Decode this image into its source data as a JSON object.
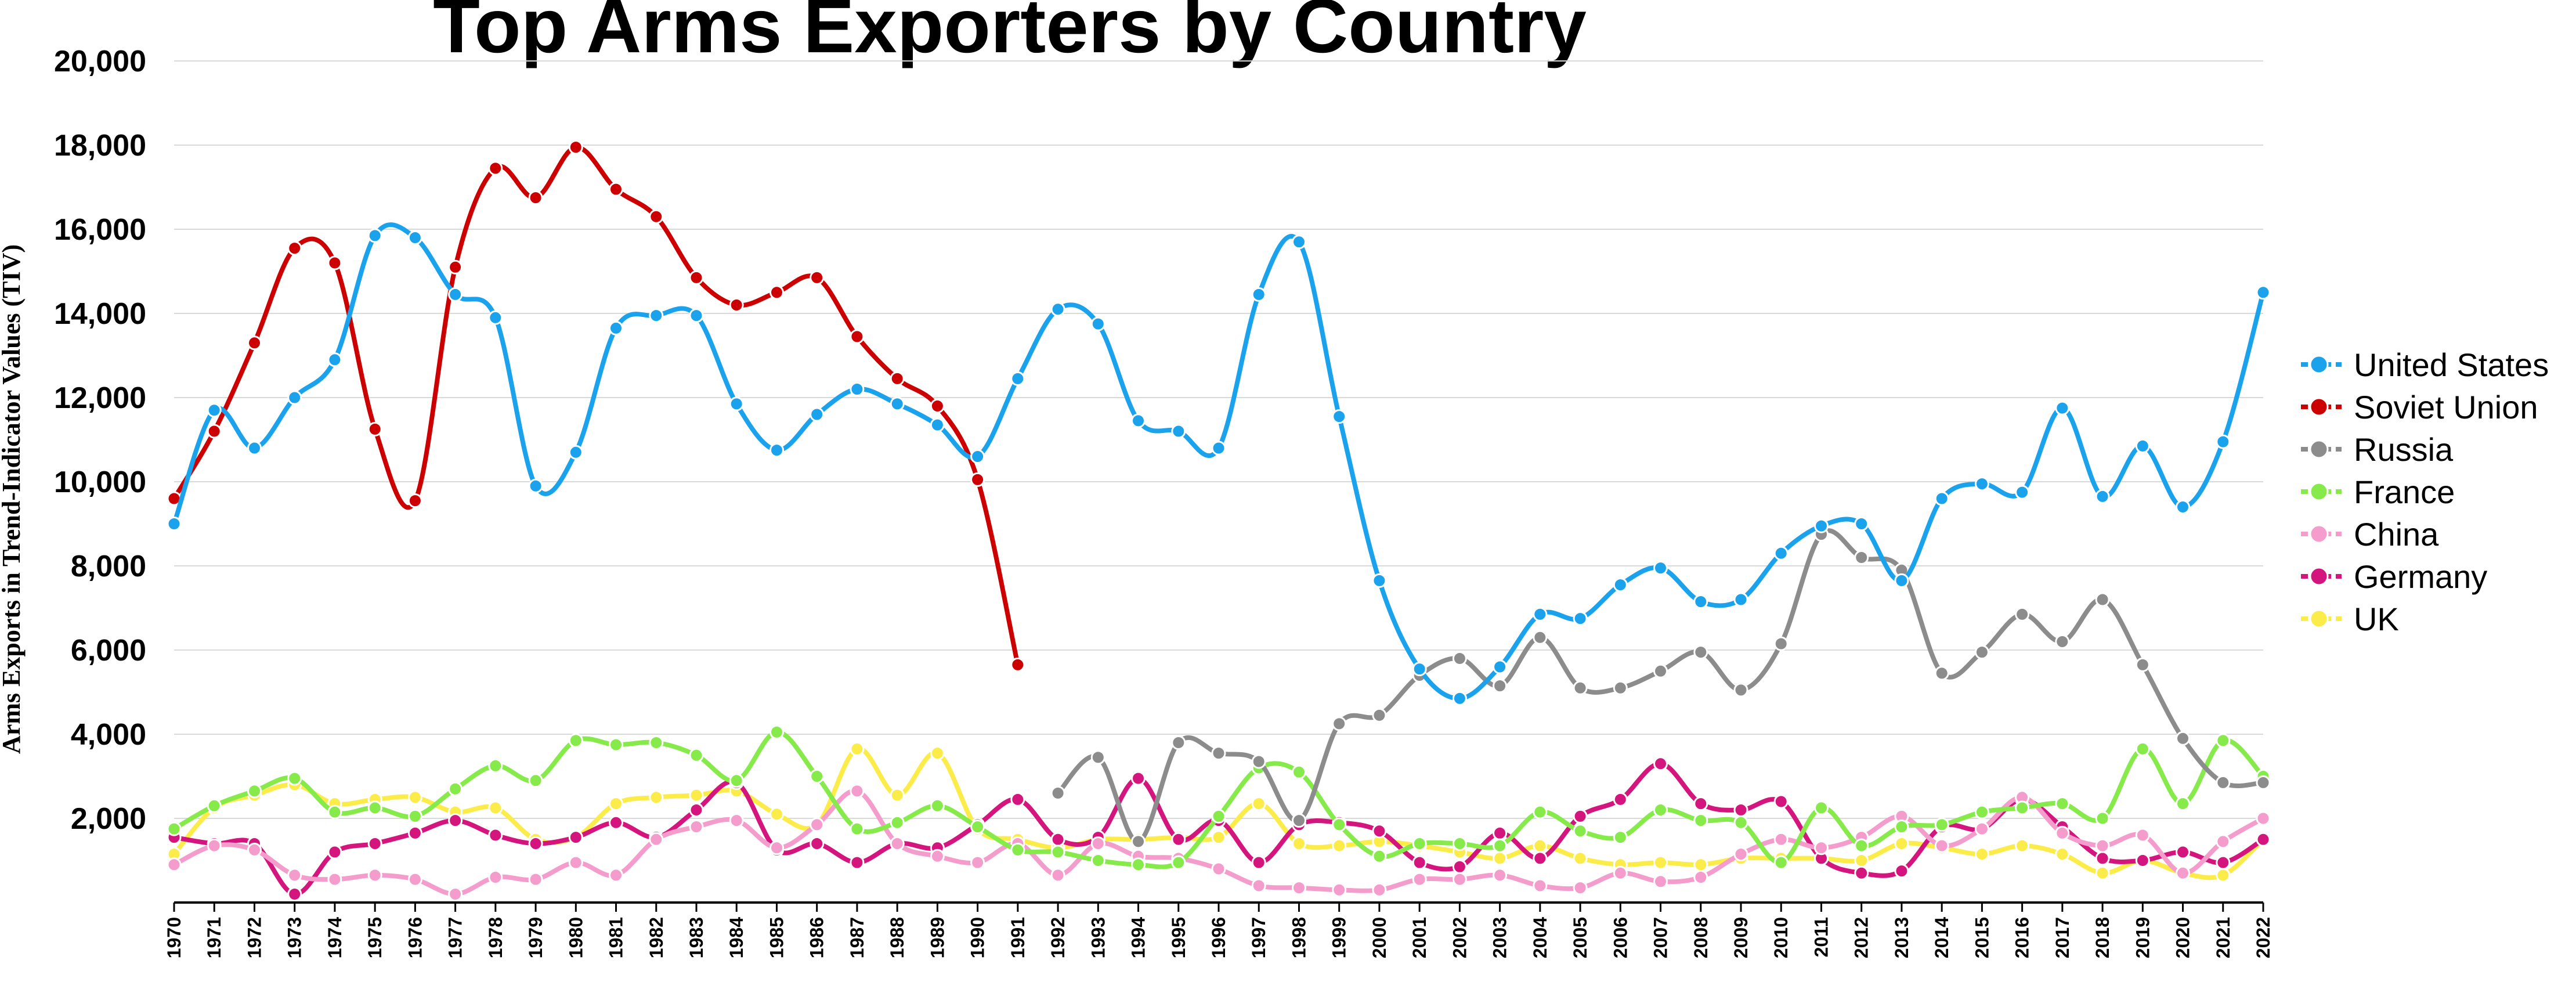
{
  "chart_data": {
    "type": "line",
    "title": "Top Arms Exporters by Country",
    "ylabel": "Arms Exports in Trend-Indicator Values (TIV)",
    "xlabel": "",
    "ylim": [
      0,
      20000
    ],
    "yticks": [
      2000,
      4000,
      6000,
      8000,
      10000,
      12000,
      14000,
      16000,
      18000,
      20000
    ],
    "ytick_labels": [
      "2,000",
      "4,000",
      "6,000",
      "8,000",
      "10,000",
      "12,000",
      "14,000",
      "16,000",
      "18,000",
      "20,000"
    ],
    "grid": true,
    "legend_position": "right",
    "x": [
      1970,
      1971,
      1972,
      1973,
      1974,
      1975,
      1976,
      1977,
      1978,
      1979,
      1980,
      1981,
      1982,
      1983,
      1984,
      1985,
      1986,
      1987,
      1988,
      1989,
      1990,
      1991,
      1992,
      1993,
      1994,
      1995,
      1996,
      1997,
      1998,
      1999,
      2000,
      2001,
      2002,
      2003,
      2004,
      2005,
      2006,
      2007,
      2008,
      2009,
      2010,
      2011,
      2012,
      2013,
      2014,
      2015,
      2016,
      2017,
      2018,
      2019,
      2020,
      2021,
      2022
    ],
    "x_labels": [
      "1970",
      "1971",
      "1972",
      "1973",
      "1974",
      "1975",
      "1976",
      "1977",
      "1978",
      "1979",
      "1980",
      "1981",
      "1982",
      "1983",
      "1984",
      "1985",
      "1986",
      "1987",
      "1988",
      "1989",
      "1990",
      "1991",
      "1992",
      "1993",
      "1994",
      "1995",
      "1996",
      "1997",
      "1998",
      "1999",
      "2000",
      "2001",
      "2002",
      "2003",
      "2004",
      "2005",
      "2006",
      "2007",
      "2008",
      "2009",
      "2010",
      "2011",
      "2012",
      "2013",
      "2014",
      "2015",
      "2016",
      "2017",
      "2018",
      "2019",
      "2020",
      "2021",
      "2022"
    ],
    "series": [
      {
        "name": "United States",
        "color": "#1aa3ec",
        "values": [
          9000,
          11700,
          10800,
          12000,
          12900,
          15850,
          15800,
          14450,
          13900,
          9900,
          10700,
          13650,
          13950,
          13950,
          11850,
          10750,
          11600,
          12200,
          11850,
          11350,
          10600,
          12450,
          14100,
          13750,
          11450,
          11200,
          10800,
          14450,
          15700,
          11550,
          7650,
          5550,
          4850,
          5600,
          6850,
          6750,
          7550,
          7950,
          7150,
          7200,
          8300,
          8950,
          9000,
          7650,
          9600,
          9950,
          9750,
          11750,
          9650,
          10850,
          9400,
          10950,
          14500
        ]
      },
      {
        "name": "Soviet Union",
        "color": "#cc0000",
        "values": [
          9600,
          11200,
          13300,
          15550,
          15200,
          11250,
          9550,
          15100,
          17450,
          16750,
          17950,
          16950,
          16300,
          14850,
          14200,
          14500,
          14850,
          13450,
          12450,
          11800,
          10050,
          5650,
          null,
          null,
          null,
          null,
          null,
          null,
          null,
          null,
          null,
          null,
          null,
          null,
          null,
          null,
          null,
          null,
          null,
          null,
          null,
          null,
          null,
          null,
          null,
          null,
          null,
          null,
          null,
          null,
          null,
          null,
          null
        ]
      },
      {
        "name": "Russia",
        "color": "#8c8c8c",
        "values": [
          null,
          null,
          null,
          null,
          null,
          null,
          null,
          null,
          null,
          null,
          null,
          null,
          null,
          null,
          null,
          null,
          null,
          null,
          null,
          null,
          null,
          null,
          2600,
          3450,
          1450,
          3800,
          3550,
          3350,
          1950,
          4250,
          4450,
          5400,
          5800,
          5150,
          6300,
          5100,
          5100,
          5500,
          5950,
          5050,
          6150,
          8750,
          8200,
          7900,
          5450,
          5950,
          6850,
          6200,
          7200,
          5650,
          3900,
          2850,
          2850
        ]
      },
      {
        "name": "France",
        "color": "#86ea4a",
        "values": [
          1750,
          2300,
          2650,
          2950,
          2150,
          2250,
          2050,
          2700,
          3250,
          2900,
          3850,
          3750,
          3800,
          3500,
          2900,
          4050,
          3000,
          1750,
          1900,
          2300,
          1800,
          1250,
          1200,
          1000,
          900,
          950,
          2050,
          3200,
          3100,
          1850,
          1100,
          1400,
          1400,
          1350,
          2150,
          1700,
          1550,
          2200,
          1950,
          1900,
          950,
          2250,
          1350,
          1800,
          1850,
          2150,
          2250,
          2350,
          2000,
          3650,
          2350,
          3850,
          3000
        ]
      },
      {
        "name": "China",
        "color": "#f49ccb",
        "values": [
          900,
          1350,
          1250,
          650,
          550,
          650,
          550,
          200,
          600,
          550,
          950,
          650,
          1500,
          1800,
          1950,
          1300,
          1850,
          2650,
          1400,
          1100,
          950,
          1400,
          650,
          1400,
          1100,
          1050,
          800,
          400,
          350,
          300,
          300,
          550,
          550,
          650,
          400,
          350,
          700,
          500,
          600,
          1150,
          1500,
          1300,
          1550,
          2050,
          1350,
          1750,
          2500,
          1650,
          1350,
          1600,
          700,
          1450,
          2000
        ]
      },
      {
        "name": "Germany",
        "color": "#d4157d",
        "values": [
          1550,
          1400,
          1400,
          200,
          1200,
          1400,
          1650,
          1950,
          1600,
          1400,
          1550,
          1900,
          1550,
          2200,
          2850,
          1250,
          1400,
          950,
          1400,
          1300,
          1850,
          2450,
          1500,
          1550,
          2950,
          1500,
          1950,
          950,
          1850,
          1900,
          1700,
          950,
          850,
          1650,
          1050,
          2050,
          2450,
          3300,
          2350,
          2200,
          2400,
          1050,
          700,
          750,
          1800,
          1750,
          2450,
          1800,
          1050,
          1000,
          1200,
          950,
          1500
        ]
      },
      {
        "name": "UK",
        "color": "#fcec4a",
        "values": [
          1150,
          2250,
          2550,
          2800,
          2350,
          2450,
          2500,
          2150,
          2250,
          1500,
          1550,
          2350,
          2500,
          2550,
          2650,
          2100,
          1850,
          3650,
          2550,
          3550,
          1750,
          1500,
          1300,
          1500,
          1500,
          1550,
          1550,
          2350,
          1400,
          1350,
          1450,
          1350,
          1200,
          1050,
          1350,
          1050,
          900,
          950,
          900,
          1050,
          1050,
          1050,
          1000,
          1400,
          1300,
          1150,
          1350,
          1150,
          700,
          1000,
          700,
          650,
          1500
        ]
      }
    ]
  }
}
